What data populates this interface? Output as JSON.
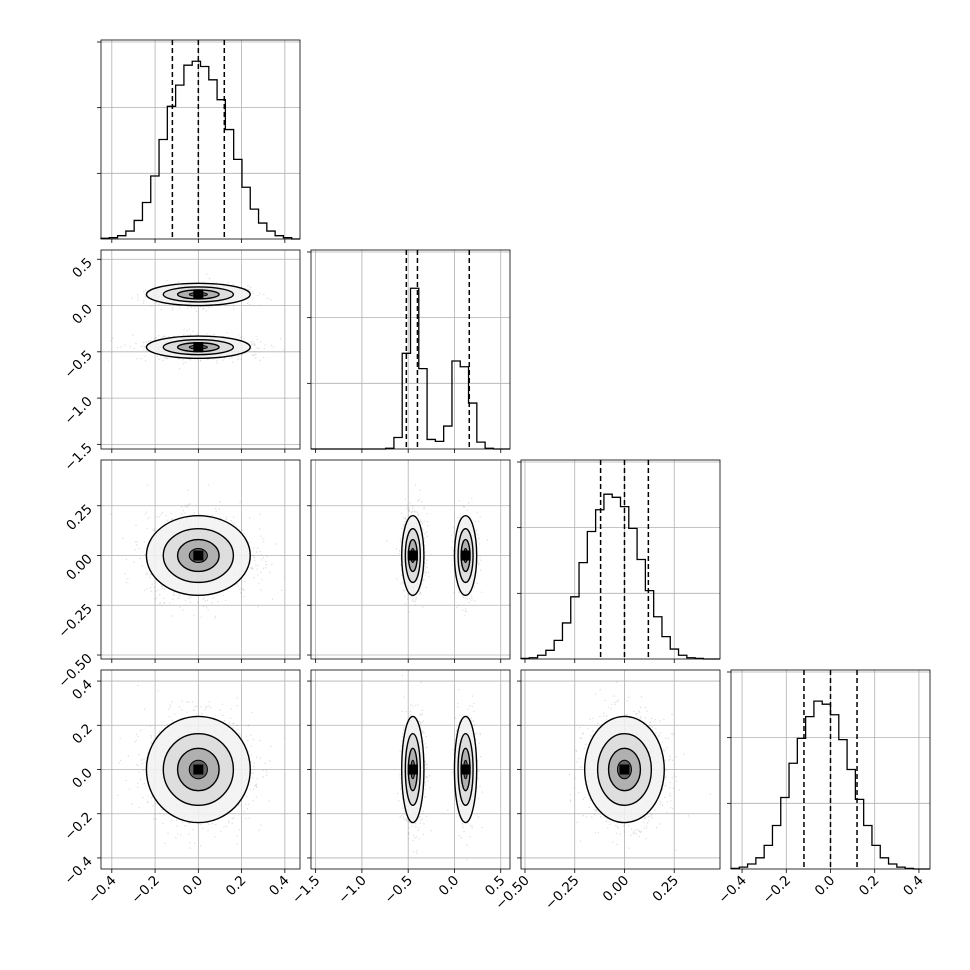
{
  "chart_data": {
    "type": "corner",
    "grid": true,
    "parameters": [
      {
        "range": [
          -0.45,
          0.47
        ],
        "tick_values": [
          -0.4,
          -0.2,
          0.0,
          0.2,
          0.4
        ],
        "tick_labels": [
          "−0.4",
          "−0.2",
          "0.0",
          "0.2",
          "0.4"
        ],
        "quantiles": [
          -0.12,
          0.0,
          0.12
        ],
        "hist_bins": [
          -0.45,
          0.47
        ],
        "hist_counts": [
          1,
          2,
          5,
          12,
          28,
          55,
          95,
          150,
          200,
          232,
          262,
          268,
          260,
          240,
          210,
          165,
          120,
          78,
          45,
          24,
          12,
          5,
          2,
          0
        ],
        "hist_ylim": [
          0,
          300
        ],
        "mode": "single",
        "centers": [
          0.0
        ],
        "sigma": 0.12
      },
      {
        "range": [
          -1.55,
          0.6
        ],
        "tick_values": [
          -1.5,
          -1.0,
          -0.5,
          0.0,
          0.5
        ],
        "tick_labels": [
          "−1.5",
          "−1.0",
          "−0.5",
          "0.0",
          "0.5"
        ],
        "quantiles": [
          -0.52,
          -0.4,
          0.16
        ],
        "hist_bins": [
          -1.55,
          0.6
        ],
        "hist_counts": [
          0,
          0,
          0,
          0,
          0,
          0,
          0,
          0,
          0,
          2,
          30,
          250,
          420,
          210,
          25,
          20,
          60,
          230,
          215,
          120,
          18,
          2,
          0,
          0
        ],
        "hist_ylim": [
          0,
          520
        ],
        "mode": "bimodal",
        "centers": [
          -0.45,
          0.12
        ],
        "sigma": 0.06
      },
      {
        "range": [
          -0.52,
          0.48
        ],
        "tick_values": [
          -0.5,
          -0.25,
          0.0,
          0.25
        ],
        "tick_labels": [
          "−0.50",
          "−0.25",
          "0.00",
          "0.25"
        ],
        "quantiles": [
          -0.12,
          0.0,
          0.12
        ],
        "hist_bins": [
          -0.52,
          0.48
        ],
        "hist_counts": [
          1,
          2,
          6,
          14,
          30,
          58,
          100,
          155,
          205,
          240,
          265,
          260,
          245,
          210,
          160,
          110,
          68,
          36,
          16,
          6,
          2,
          1,
          0,
          0
        ],
        "hist_ylim": [
          0,
          320
        ],
        "mode": "single",
        "centers": [
          0.0
        ],
        "sigma": 0.1
      },
      {
        "range": [
          -0.45,
          0.45
        ],
        "tick_values": [
          -0.4,
          -0.2,
          0.0,
          0.2,
          0.4
        ],
        "tick_labels": [
          "−0.4",
          "−0.2",
          "0.0",
          "0.2",
          "0.4"
        ],
        "quantiles": [
          -0.12,
          0.0,
          0.12
        ],
        "hist_bins": [
          -0.45,
          0.45
        ],
        "hist_counts": [
          1,
          3,
          8,
          18,
          38,
          70,
          115,
          170,
          210,
          245,
          270,
          265,
          248,
          208,
          160,
          112,
          70,
          38,
          18,
          8,
          3,
          1,
          0,
          0
        ],
        "hist_ylim": [
          0,
          320
        ],
        "mode": "single",
        "centers": [
          0.0
        ],
        "sigma": 0.12
      }
    ]
  }
}
